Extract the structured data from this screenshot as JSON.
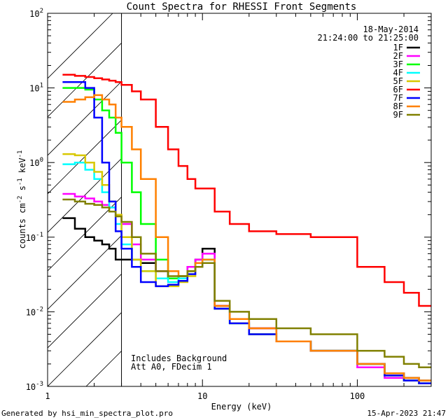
{
  "chart_data": {
    "type": "line",
    "title": "Count Spectra for RHESSI Front Segments",
    "xlabel": "Energy (keV)",
    "ylabel_parts": {
      "a": "counts cm",
      "b": "-2",
      "c": " s",
      "d": "-1",
      "e": " keV",
      "f": "-1"
    },
    "x_scale": "log",
    "y_scale": "log",
    "xlim": [
      1,
      300
    ],
    "ylim": [
      0.001,
      100
    ],
    "x_ticks": [
      {
        "value": 1,
        "label": "1"
      },
      {
        "value": 10,
        "label": "10"
      },
      {
        "value": 100,
        "label": "100"
      }
    ],
    "y_ticks": [
      {
        "value": 0.001,
        "mant": "10",
        "exp": "-3"
      },
      {
        "value": 0.01,
        "mant": "10",
        "exp": "-2"
      },
      {
        "value": 0.1,
        "mant": "10",
        "exp": "-1"
      },
      {
        "value": 1,
        "mant": "10",
        "exp": "0"
      },
      {
        "value": 10,
        "mant": "10",
        "exp": "1"
      },
      {
        "value": 100,
        "mant": "10",
        "exp": "2"
      }
    ],
    "attenuated_region_keV": [
      1,
      3
    ],
    "date_label": "18-May-2014",
    "time_label": "21:24:00 to 21:25:00",
    "annotations": [
      "Includes Background",
      "Att A0, FDecim 1"
    ],
    "footer_left": "Generated by hsi_min_spectra_plot.pro",
    "footer_right": "15-Apr-2023 21:47",
    "legend_position": "top-right",
    "series": [
      {
        "name": "1F",
        "color": "#000000",
        "x": [
          1.25,
          1.5,
          1.75,
          2,
          2.25,
          2.5,
          2.75,
          3,
          3.5,
          4,
          5,
          6,
          7,
          8,
          9,
          10,
          12,
          15,
          20,
          30,
          50,
          100,
          150,
          200,
          250
        ],
        "values": [
          0.18,
          0.13,
          0.1,
          0.09,
          0.08,
          0.07,
          0.05,
          0.05,
          0.05,
          0.045,
          0.035,
          0.028,
          0.03,
          0.04,
          0.05,
          0.07,
          0.012,
          0.008,
          0.006,
          0.004,
          0.003,
          0.002,
          0.0015,
          0.0013,
          0.0012
        ]
      },
      {
        "name": "2F",
        "color": "#ff00ff",
        "x": [
          1.25,
          1.5,
          1.75,
          2,
          2.25,
          2.5,
          2.75,
          3,
          3.5,
          4,
          5,
          6,
          7,
          8,
          9,
          10,
          12,
          15,
          20,
          30,
          50,
          100,
          150,
          200,
          250
        ],
        "values": [
          0.38,
          0.35,
          0.33,
          0.3,
          0.27,
          0.25,
          0.2,
          0.15,
          0.08,
          0.05,
          0.035,
          0.028,
          0.03,
          0.04,
          0.05,
          0.06,
          0.012,
          0.008,
          0.006,
          0.004,
          0.003,
          0.0018,
          0.0013,
          0.0012,
          0.0011
        ]
      },
      {
        "name": "3F",
        "color": "#00ff00",
        "x": [
          1.25,
          1.5,
          1.75,
          2,
          2.25,
          2.5,
          2.75,
          3,
          3.5,
          4,
          5,
          6,
          7,
          8,
          9,
          10,
          12,
          15,
          20,
          30,
          50,
          100,
          150,
          200,
          250
        ],
        "values": [
          10,
          10,
          9.5,
          7,
          5,
          4,
          2.5,
          1,
          0.4,
          0.15,
          0.05,
          0.028,
          0.03,
          0.035,
          0.045,
          0.05,
          0.011,
          0.007,
          0.005,
          0.004,
          0.003,
          0.002,
          0.0014,
          0.0012,
          0.0011
        ]
      },
      {
        "name": "4F",
        "color": "#00ffff",
        "x": [
          1.25,
          1.5,
          1.75,
          2,
          2.25,
          2.5,
          2.75,
          3,
          3.5,
          4,
          5,
          6,
          7,
          8,
          9,
          10,
          12,
          15,
          20,
          30,
          50,
          100,
          150,
          200,
          250
        ],
        "values": [
          0.95,
          1.0,
          0.8,
          0.6,
          0.4,
          0.25,
          0.15,
          0.08,
          0.05,
          0.035,
          0.028,
          0.025,
          0.028,
          0.035,
          0.045,
          0.05,
          0.011,
          0.007,
          0.005,
          0.004,
          0.003,
          0.002,
          0.0014,
          0.0012,
          0.0011
        ]
      },
      {
        "name": "5F",
        "color": "#d8c800",
        "x": [
          1.25,
          1.5,
          1.75,
          2,
          2.25,
          2.5,
          2.75,
          3,
          3.5,
          4,
          5,
          6,
          7,
          8,
          9,
          10,
          12,
          15,
          20,
          30,
          50,
          100,
          150,
          200,
          250
        ],
        "values": [
          1.3,
          1.25,
          1.0,
          0.75,
          0.5,
          0.3,
          0.2,
          0.1,
          0.05,
          0.035,
          0.022,
          0.022,
          0.025,
          0.03,
          0.04,
          0.045,
          0.011,
          0.007,
          0.005,
          0.004,
          0.003,
          0.002,
          0.0014,
          0.0012,
          0.0011
        ]
      },
      {
        "name": "6F",
        "color": "#ff0000",
        "x": [
          1.25,
          1.5,
          1.75,
          2,
          2.25,
          2.5,
          2.75,
          3,
          3.5,
          4,
          5,
          6,
          7,
          8,
          9,
          10,
          12,
          15,
          20,
          30,
          50,
          100,
          150,
          200,
          250
        ],
        "values": [
          15,
          14.5,
          14,
          13.5,
          13,
          12.5,
          12,
          11,
          9,
          7,
          3,
          1.5,
          0.9,
          0.6,
          0.45,
          0.45,
          0.22,
          0.15,
          0.12,
          0.11,
          0.1,
          0.04,
          0.025,
          0.018,
          0.012
        ]
      },
      {
        "name": "7F",
        "color": "#0000ff",
        "x": [
          1.25,
          1.5,
          1.75,
          2,
          2.25,
          2.5,
          2.75,
          3,
          3.5,
          4,
          5,
          6,
          7,
          8,
          9,
          10,
          12,
          15,
          20,
          30,
          50,
          100,
          150,
          200,
          250
        ],
        "values": [
          12,
          12,
          10,
          4,
          1,
          0.3,
          0.12,
          0.07,
          0.04,
          0.025,
          0.022,
          0.023,
          0.026,
          0.032,
          0.04,
          0.045,
          0.011,
          0.007,
          0.005,
          0.004,
          0.003,
          0.002,
          0.0014,
          0.0012,
          0.0011
        ]
      },
      {
        "name": "8F",
        "color": "#ff8000",
        "x": [
          1.25,
          1.5,
          1.75,
          2,
          2.25,
          2.5,
          2.75,
          3,
          3.5,
          4,
          5,
          6,
          7,
          8,
          9,
          10,
          12,
          15,
          20,
          30,
          50,
          100,
          150,
          200,
          250
        ],
        "values": [
          6.5,
          7,
          7.5,
          8,
          7,
          6,
          4,
          3,
          1.5,
          0.6,
          0.1,
          0.035,
          0.03,
          0.035,
          0.045,
          0.05,
          0.012,
          0.008,
          0.006,
          0.004,
          0.003,
          0.002,
          0.0015,
          0.0013,
          0.0012
        ]
      },
      {
        "name": "9F",
        "color": "#808000",
        "x": [
          1.25,
          1.5,
          1.75,
          2,
          2.25,
          2.5,
          2.75,
          3,
          3.5,
          4,
          5,
          6,
          7,
          8,
          9,
          10,
          12,
          15,
          20,
          30,
          50,
          100,
          150,
          200,
          250
        ],
        "values": [
          0.32,
          0.3,
          0.28,
          0.27,
          0.25,
          0.22,
          0.19,
          0.16,
          0.1,
          0.06,
          0.035,
          0.03,
          0.03,
          0.035,
          0.04,
          0.045,
          0.014,
          0.01,
          0.008,
          0.006,
          0.005,
          0.003,
          0.0025,
          0.002,
          0.0018
        ]
      }
    ]
  }
}
